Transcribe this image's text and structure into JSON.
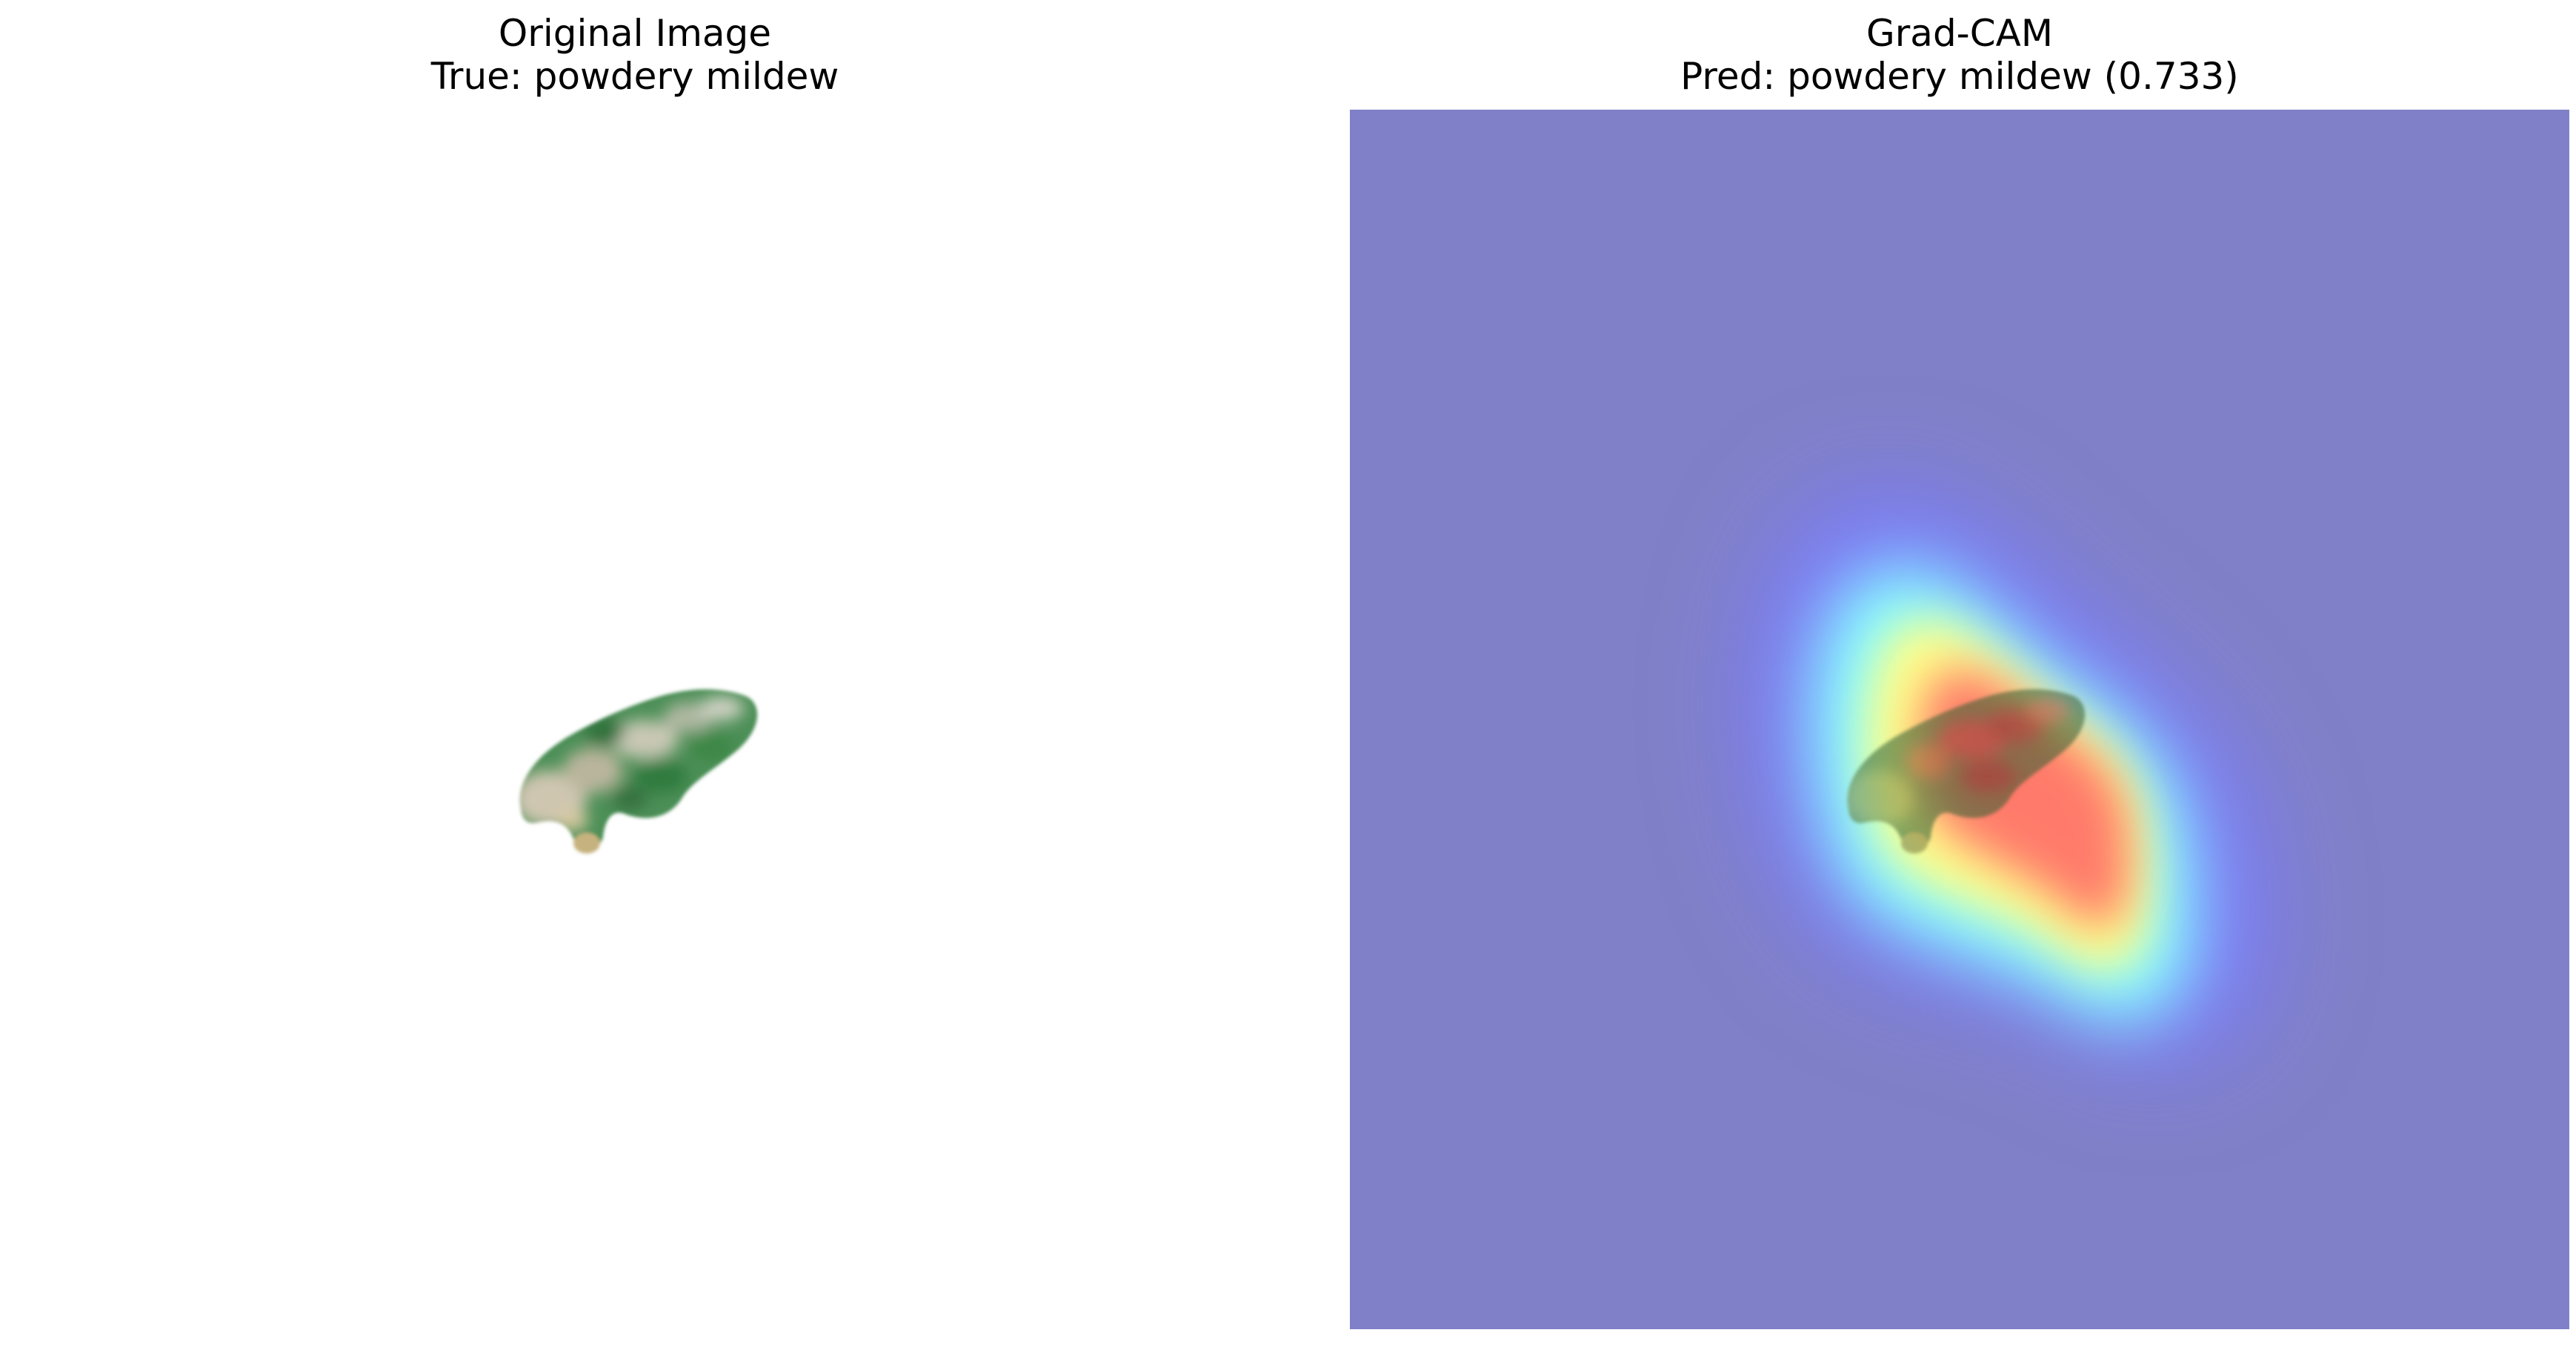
{
  "figure": {
    "left_panel": {
      "title_line1": "Original Image",
      "title_line2": "True: powdery mildew"
    },
    "right_panel": {
      "title_line1": "Grad-CAM",
      "title_line2": "Pred: powdery mildew (0.733)"
    }
  },
  "colors": {
    "background": "#ffffff",
    "heatmap_base": "#8080c8",
    "heatmap_low": "#7a7aff",
    "heatmap_mid": "#88ffff",
    "heatmap_high": "#ffff88",
    "heatmap_peak": "#ff7a6a",
    "leaf_green": "#3f8a4a",
    "leaf_pale": "#c9c0a8"
  }
}
